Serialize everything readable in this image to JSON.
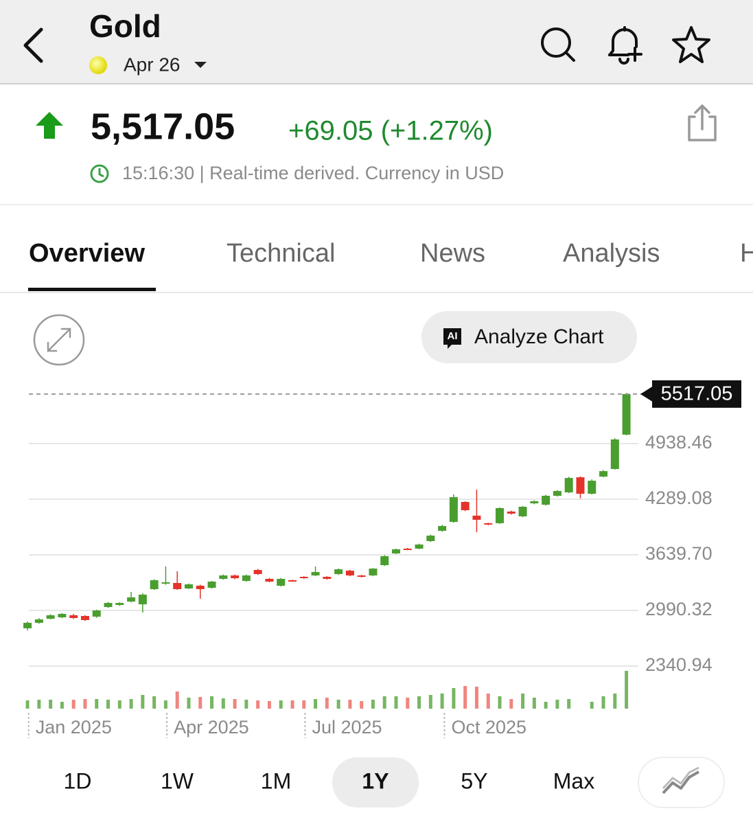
{
  "header": {
    "title": "Gold",
    "date": "Apr 26"
  },
  "quote": {
    "price": "5,517.05",
    "change": "+69.05 (+1.27%)",
    "timestamp": "15:16:30 | Real-time derived. Currency in USD"
  },
  "tabs": [
    "Overview",
    "Technical",
    "News",
    "Analysis",
    "H"
  ],
  "ai_badge": "AI",
  "analyze_button": "Analyze Chart",
  "ranges": [
    "1D",
    "1W",
    "1M",
    "1Y",
    "5Y",
    "Max"
  ],
  "chart_data": {
    "type": "candlestick",
    "x": [
      0,
      1,
      2,
      3,
      4,
      5,
      6,
      7,
      8,
      9,
      10,
      11,
      12,
      13,
      14,
      15,
      16,
      17,
      18,
      19,
      20,
      21,
      22,
      23,
      24,
      25,
      26,
      27,
      28,
      29,
      30,
      31,
      32,
      33,
      34,
      35,
      36,
      37,
      38,
      39,
      40,
      41,
      42,
      43,
      44,
      45,
      46,
      47,
      48,
      49,
      50,
      51,
      52
    ],
    "open": [
      2782,
      2846,
      2894,
      2910,
      2934,
      2926,
      2918,
      3030,
      3054,
      3094,
      3062,
      3239,
      3303,
      3311,
      3247,
      3279,
      3255,
      3359,
      3399,
      3335,
      3463,
      3359,
      3279,
      3343,
      3383,
      3399,
      3383,
      3415,
      3455,
      3399,
      3399,
      3519,
      3656,
      3712,
      3712,
      3800,
      3920,
      4024,
      4257,
      4097,
      4009,
      4009,
      4145,
      4089,
      4241,
      4225,
      4329,
      4369,
      4545,
      4353,
      4553,
      4642,
      5043
    ],
    "high": [
      2862,
      2900,
      2945,
      2960,
      2950,
      2935,
      3000,
      3090,
      3085,
      3207,
      3190,
      3355,
      3504,
      3448,
      3305,
      3290,
      3335,
      3410,
      3410,
      3410,
      3475,
      3370,
      3370,
      3350,
      3390,
      3504,
      3390,
      3480,
      3465,
      3405,
      3485,
      3635,
      3712,
      3720,
      3770,
      3875,
      3990,
      4345,
      4265,
      4401,
      4015,
      4195,
      4155,
      4210,
      4275,
      4340,
      4395,
      4550,
      4555,
      4520,
      4630,
      5000,
      5530
    ],
    "low": [
      2758,
      2835,
      2885,
      2900,
      2890,
      2868,
      2905,
      3020,
      3045,
      3085,
      2966,
      3230,
      3290,
      3230,
      3240,
      3127,
      3245,
      3350,
      3355,
      3325,
      3405,
      3320,
      3270,
      3330,
      3360,
      3390,
      3350,
      3405,
      3390,
      3375,
      3390,
      3510,
      3648,
      3700,
      3705,
      3790,
      3910,
      4015,
      4150,
      3904,
      3985,
      4000,
      4110,
      4080,
      4230,
      4215,
      4320,
      4360,
      4300,
      4345,
      4545,
      4635,
      5035
    ],
    "close": [
      2846,
      2886,
      2934,
      2950,
      2902,
      2878,
      2990,
      3078,
      3078,
      3143,
      3175,
      3343,
      3319,
      3239,
      3295,
      3239,
      3327,
      3399,
      3367,
      3399,
      3415,
      3327,
      3359,
      3335,
      3367,
      3439,
      3359,
      3471,
      3399,
      3383,
      3479,
      3624,
      3704,
      3704,
      3760,
      3864,
      3976,
      4313,
      4161,
      4049,
      3993,
      4185,
      4121,
      4201,
      4265,
      4329,
      4385,
      4537,
      4353,
      4505,
      4617,
      4987,
      5517.05
    ],
    "volume": [
      12,
      13,
      13,
      10,
      13,
      14,
      14,
      13,
      12,
      14,
      20,
      18,
      12,
      25,
      16,
      17,
      18,
      15,
      14,
      13,
      12,
      11,
      12,
      12,
      12,
      14,
      16,
      13,
      13,
      11,
      13,
      18,
      18,
      16,
      18,
      20,
      22,
      30,
      33,
      32,
      22,
      18,
      14,
      22,
      16,
      10,
      13,
      14,
      null,
      10,
      18,
      22,
      55
    ],
    "volume_ylim": [
      0,
      60
    ],
    "xlim": [
      -0.6,
      52.74
    ],
    "xticks": [
      {
        "value": 0.1,
        "label": "Jan 2025"
      },
      {
        "value": 12.1,
        "label": "Apr 2025"
      },
      {
        "value": 24.1,
        "label": "Jul 2025"
      },
      {
        "value": 36.2,
        "label": "Oct 2025"
      }
    ],
    "ylim": [
      2340.94,
      5628
    ],
    "yticks": [
      2340.94,
      2990.32,
      {
        "value": 3639.7,
        "label": "3639.70"
      },
      4289.08,
      4938.46
    ],
    "grid": true,
    "up_color": "#4a9e2f",
    "down_color": "#e5332a"
  }
}
